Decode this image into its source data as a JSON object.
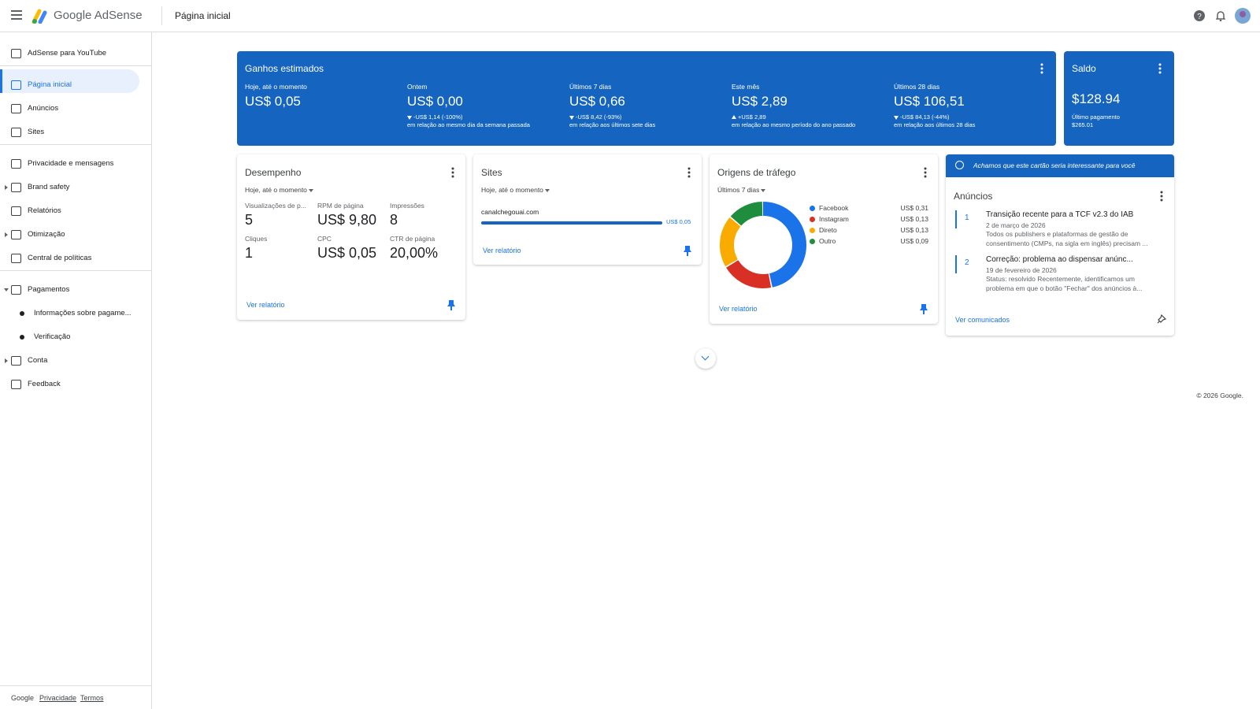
{
  "header": {
    "product": "Google AdSense",
    "page_title": "Página inicial"
  },
  "sidebar": {
    "items": [
      "AdSense para YouTube",
      "Página inicial",
      "Anúncios",
      "Sites",
      "Privacidade e mensagens",
      "Brand safety",
      "Relatórios",
      "Otimização",
      "Central de políticas",
      "Pagamentos",
      "Informações sobre pagame...",
      "Verificação",
      "Conta",
      "Feedback"
    ],
    "footer_links": [
      "Google",
      "Privacidade",
      "Termos"
    ]
  },
  "earnings": {
    "title": "Ganhos estimados",
    "periods": [
      {
        "label": "Hoje, até o momento",
        "amount": "US$ 0,05"
      },
      {
        "label": "Ontem",
        "amount": "US$ 0,00",
        "change": "-US$ 1,14 (-100%)",
        "comparison": "em relação ao mesmo dia da semana passada"
      },
      {
        "label": "Últimos 7 dias",
        "amount": "US$ 0,66",
        "change": "-US$ 8,42 (-93%)",
        "comparison": "em relação aos últimos sete dias"
      },
      {
        "label": "Este mês",
        "amount": "US$ 2,89",
        "change": "+US$ 2,89",
        "comparison": "em relação ao mesmo período do ano passado"
      },
      {
        "label": "Últimos 28 dias",
        "amount": "US$ 106,51",
        "change": "-US$ 84,13 (-44%)",
        "comparison": "em relação aos últimos 28 dias"
      }
    ]
  },
  "balance": {
    "title": "Saldo",
    "amount": "$128.94",
    "last_payment_label": "Último pagamento",
    "last_payment": "$265.01"
  },
  "performance": {
    "title": "Desempenho",
    "range": "Hoje, até o momento",
    "metrics": [
      {
        "label": "Visualizações de p...",
        "value": "5"
      },
      {
        "label": "RPM de página",
        "value": "US$ 9,80"
      },
      {
        "label": "Impressões",
        "value": "8"
      },
      {
        "label": "Cliques",
        "value": "1"
      },
      {
        "label": "CPC",
        "value": "US$ 0,05"
      },
      {
        "label": "CTR de página",
        "value": "20,00%"
      }
    ],
    "link": "Ver relatório"
  },
  "sites": {
    "title": "Sites",
    "range": "Hoje, até o momento",
    "rows": [
      {
        "name": "canalchegouai.com",
        "value": 0.05,
        "label": "US$ 0,05"
      }
    ],
    "link": "Ver relatório"
  },
  "traffic": {
    "title": "Origens de tráfego",
    "range": "Últimos 7 dias",
    "sources": [
      {
        "name": "Facebook",
        "color": "#1a73e8",
        "value": 0.31,
        "label": "US$ 0,31"
      },
      {
        "name": "Instagram",
        "color": "#d93025",
        "value": 0.13,
        "label": "US$ 0,13"
      },
      {
        "name": "Direto",
        "color": "#f9ab00",
        "value": 0.13,
        "label": "US$ 0,13"
      },
      {
        "name": "Outro",
        "color": "#1e8e3e",
        "value": 0.09,
        "label": "US$ 0,09"
      }
    ],
    "link": "Ver relatório"
  },
  "announcements": {
    "banner": "Achamos que este cartão seria interessante para você",
    "title": "Anúncios",
    "items": [
      {
        "index": "1",
        "title": "Transição recente para a TCF v2.3 do IAB",
        "date": "2 de março de 2026",
        "text": "Todos os publishers e plataformas de gestão de consentimento (CMPs, na sigla em inglês) precisam ..."
      },
      {
        "index": "2",
        "title": "Correção: problema ao dispensar anúnc...",
        "date": "19 de fevereiro de 2026",
        "text": "Status: resolvido Recentemente, identificamos um problema em que o botão \"Fechar\" dos anúncios à..."
      }
    ],
    "link": "Ver comunicados"
  },
  "copyright": "© 2026 Google."
}
